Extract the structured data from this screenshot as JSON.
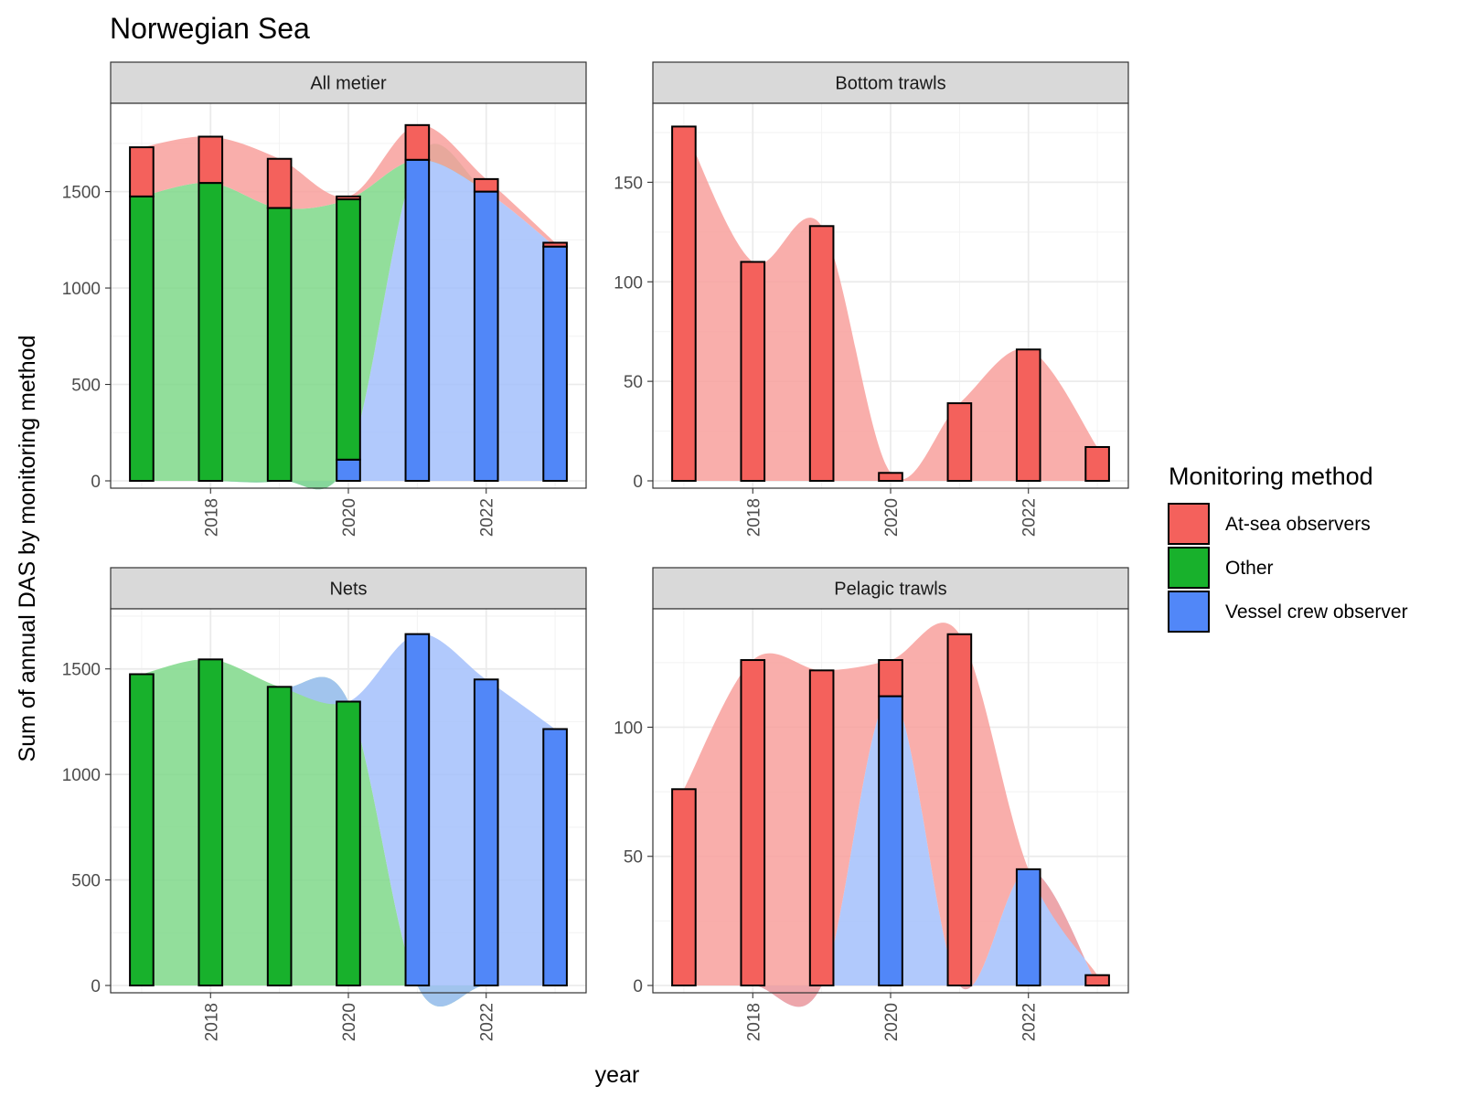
{
  "title": "Norwegian Sea",
  "y_axis_label": "Sum of annual DAS by monitoring method",
  "x_axis_label": "year",
  "legend": {
    "title": "Monitoring method",
    "items": [
      {
        "label": "At-sea observers",
        "color": "#F8766D"
      },
      {
        "label": "Other",
        "color": "#1DB33A"
      },
      {
        "label": "Vessel crew observer",
        "color": "#5B8BF7"
      }
    ]
  },
  "colors": {
    "At-sea observers": "#F4615C",
    "Other": "#18B12C",
    "Vessel crew observer": "#5187F8"
  },
  "chart_data": [
    {
      "type": "bar",
      "panel": "All metier",
      "categories": [
        2017,
        2018,
        2019,
        2020,
        2021,
        2022,
        2023
      ],
      "x_ticks": [
        "2018",
        "2020",
        "2022"
      ],
      "y_ticks": [
        "0",
        "500",
        "1000",
        "1500"
      ],
      "ylim": [
        0,
        1920
      ],
      "stacked": true,
      "series": [
        {
          "name": "Vessel crew observer",
          "values": [
            0,
            0,
            0,
            110,
            1665,
            1500,
            1215
          ]
        },
        {
          "name": "Other",
          "values": [
            1475,
            1545,
            1415,
            1350,
            0,
            0,
            0
          ]
        },
        {
          "name": "At-sea observers",
          "values": [
            255,
            240,
            255,
            15,
            180,
            65,
            20
          ]
        }
      ]
    },
    {
      "type": "bar",
      "panel": "Bottom trawls",
      "categories": [
        2017,
        2018,
        2019,
        2020,
        2021,
        2022,
        2023
      ],
      "x_ticks": [
        "2018",
        "2020",
        "2022"
      ],
      "y_ticks": [
        "0",
        "50",
        "100",
        "150"
      ],
      "ylim": [
        0,
        186
      ],
      "stacked": true,
      "series": [
        {
          "name": "At-sea observers",
          "values": [
            178,
            110,
            128,
            4,
            39,
            66,
            17
          ]
        }
      ]
    },
    {
      "type": "bar",
      "panel": "Nets",
      "categories": [
        2017,
        2018,
        2019,
        2020,
        2021,
        2022,
        2023
      ],
      "x_ticks": [
        "2018",
        "2020",
        "2022"
      ],
      "y_ticks": [
        "0",
        "500",
        "1000",
        "1500"
      ],
      "ylim": [
        0,
        1750
      ],
      "stacked": true,
      "series": [
        {
          "name": "Other",
          "values": [
            1475,
            1545,
            1415,
            1345,
            0,
            0,
            0
          ]
        },
        {
          "name": "Vessel crew observer",
          "values": [
            0,
            0,
            0,
            0,
            1665,
            1450,
            1215
          ]
        }
      ]
    },
    {
      "type": "bar",
      "panel": "Pelagic trawls",
      "categories": [
        2017,
        2018,
        2019,
        2020,
        2021,
        2022,
        2023
      ],
      "x_ticks": [
        "2018",
        "2020",
        "2022"
      ],
      "y_ticks": [
        "0",
        "50",
        "100"
      ],
      "ylim": [
        0,
        143
      ],
      "stacked": true,
      "series": [
        {
          "name": "Vessel crew observer",
          "values": [
            0,
            0,
            0,
            112,
            0,
            45,
            0
          ]
        },
        {
          "name": "At-sea observers",
          "values": [
            76,
            126,
            122,
            14,
            136,
            0,
            4
          ]
        }
      ]
    }
  ]
}
